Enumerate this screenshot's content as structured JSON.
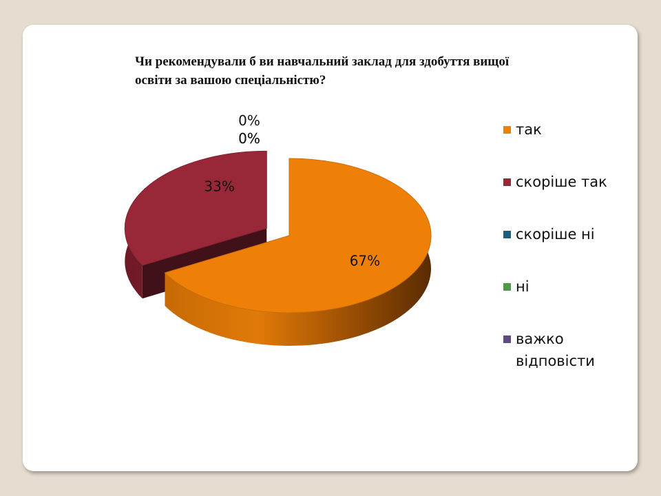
{
  "chart_data": {
    "type": "pie",
    "title": "Чи рекомендували б ви навчальний заклад для здобуття вищої освіти за вашою спеціальністю?",
    "categories": [
      "так",
      "скоріше так",
      "скоріше ні",
      "ні",
      "важко відповісти"
    ],
    "values": [
      67,
      33,
      0,
      0,
      0
    ],
    "data_labels": [
      "67%",
      "33%",
      "0%",
      "0%",
      "0%"
    ],
    "colors": [
      "#ee8008",
      "#982838",
      "#1e5c82",
      "#4f9a46",
      "#5e4a80"
    ],
    "legend_position": "right",
    "three_d": true,
    "exploded": true
  }
}
